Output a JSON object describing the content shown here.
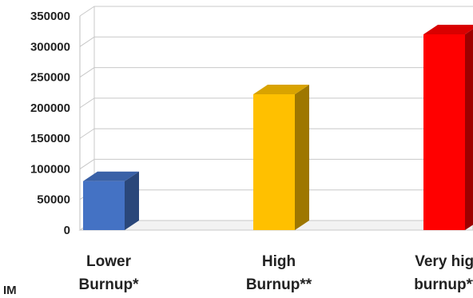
{
  "chart_data": {
    "type": "bar",
    "categories": [
      [
        "Lower",
        "Burnup*"
      ],
      [
        "High",
        "Burnup**"
      ],
      [
        "Very high",
        "burnup***"
      ]
    ],
    "values": [
      80000,
      222000,
      320000
    ],
    "colors": [
      "#4472C4",
      "#FFC000",
      "#FF0000"
    ],
    "ylim": [
      0,
      350000
    ],
    "yticks": [
      "0",
      "50000",
      "100000",
      "150000",
      "200000",
      "250000",
      "300000",
      "350000"
    ],
    "grid": true,
    "legend": "none",
    "bar_style": "3d"
  },
  "edge_text": "IM"
}
